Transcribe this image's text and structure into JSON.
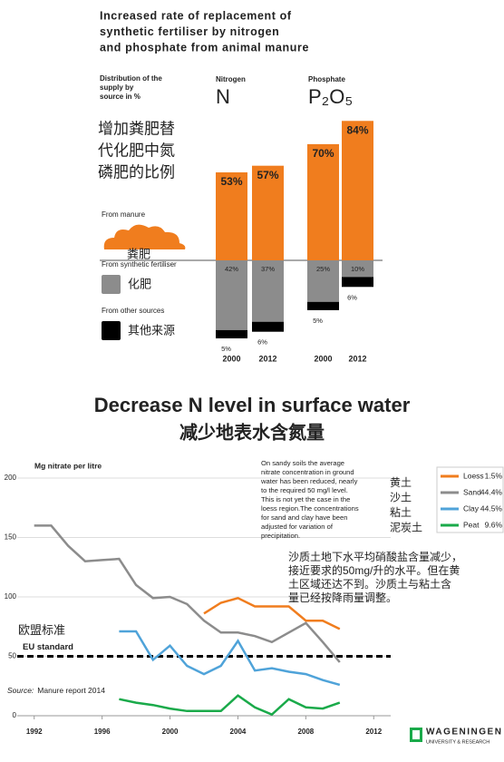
{
  "chart_data": [
    {
      "type": "bar",
      "stacked": true,
      "title": [
        "Increased rate of replacement of",
        "synthetic fertiliser by nitrogen",
        "and phosphate from animal manure"
      ],
      "ylabel": [
        "Distribution of the",
        "supply by",
        "source in %"
      ],
      "cn_title": [
        "增加粪肥替",
        "代化肥中氮",
        "磷肥的比例"
      ],
      "groups": [
        {
          "name": "Nitrogen",
          "symbol": "N"
        },
        {
          "name": "Phosphate",
          "symbol": "P₂O₅"
        }
      ],
      "categories": [
        "2000",
        "2012",
        "2000",
        "2012"
      ],
      "series": [
        {
          "name": "From manure",
          "cn_name": "粪肥",
          "color": "#f07d1e",
          "values": [
            53,
            57,
            70,
            84
          ],
          "value_labels": [
            "53%",
            "57%",
            "70%",
            "84%"
          ]
        },
        {
          "name": "From synthetic fertiliser",
          "cn_name": "化肥",
          "color": "#8c8c8c",
          "values": [
            42,
            37,
            25,
            10
          ],
          "value_labels": [
            "42%",
            "37%",
            "25%",
            "10%"
          ]
        },
        {
          "name": "From other sources",
          "cn_name": "其他来源",
          "color": "#000000",
          "values": [
            5,
            6,
            5,
            6
          ],
          "value_labels": [
            "5%",
            "6%",
            "5%",
            "6%"
          ]
        }
      ]
    },
    {
      "type": "line",
      "title": "Decrease N level in surface water",
      "subtitle": "减少地表水含氮量",
      "ylabel": "Mg nitrate per litre",
      "x": [
        1992,
        1993,
        1994,
        1995,
        1996,
        1997,
        1998,
        1999,
        2000,
        2001,
        2002,
        2003,
        2004,
        2005,
        2006,
        2007,
        2008,
        2009,
        2010
      ],
      "series": [
        {
          "name": "Loess",
          "share": "1.5%",
          "cn_name": "黄土",
          "color": "#f07d1e",
          "values": [
            null,
            null,
            null,
            null,
            null,
            null,
            null,
            null,
            null,
            null,
            86,
            95,
            99,
            92,
            92,
            92,
            80,
            80,
            73
          ]
        },
        {
          "name": "Sand",
          "share": "44.4%",
          "cn_name": "沙土",
          "color": "#8c8c8c",
          "values": [
            160,
            160,
            143,
            130,
            131,
            132,
            110,
            99,
            100,
            94,
            80,
            70,
            70,
            67,
            62,
            70,
            78,
            62,
            45
          ]
        },
        {
          "name": "Clay",
          "share": "44.5%",
          "cn_name": "粘土",
          "color": "#4fa3d9",
          "values": [
            null,
            null,
            null,
            null,
            null,
            71,
            71,
            47,
            59,
            42,
            35,
            42,
            63,
            38,
            40,
            37,
            35,
            30,
            26
          ]
        },
        {
          "name": "Peat",
          "share": "9.6%",
          "cn_name": "泥炭土",
          "color": "#1aaa4a",
          "values": [
            null,
            null,
            null,
            null,
            null,
            14,
            11,
            9,
            6,
            4,
            4,
            4,
            17,
            7,
            1,
            14,
            7,
            6,
            11
          ]
        }
      ],
      "xlim": [
        1991,
        2013
      ],
      "xticks": [
        1992,
        1996,
        2000,
        2004,
        2008,
        2012
      ],
      "ylim": [
        0,
        200
      ],
      "yticks": [
        0,
        50,
        100,
        150,
        200
      ],
      "grid": true,
      "reference": {
        "value": 50,
        "label": "EU standard",
        "cn_label": "欧盟标准"
      },
      "annotation": [
        "On sandy soils the average",
        "nitrate concentration in ground",
        "water has been reduced, nearly",
        "to the required 50 mg/l level.",
        "This is not yet the case in the",
        "loess region.The concentrations",
        "for sand and clay have been",
        "adjusted for variation of",
        "precipitation."
      ],
      "cn_annotation": [
        "沙质土地下水平均硝酸盐含量减少，",
        "接近要求的50mg/升的水平。但在黄",
        "土区域还达不到。沙质土与粘土含",
        "量已经按降雨量调整。"
      ],
      "source_label": "Source:",
      "source": "Manure report 2014",
      "logo": [
        "WAGENINGEN",
        "UNIVERSITY & RESEARCH"
      ]
    }
  ]
}
